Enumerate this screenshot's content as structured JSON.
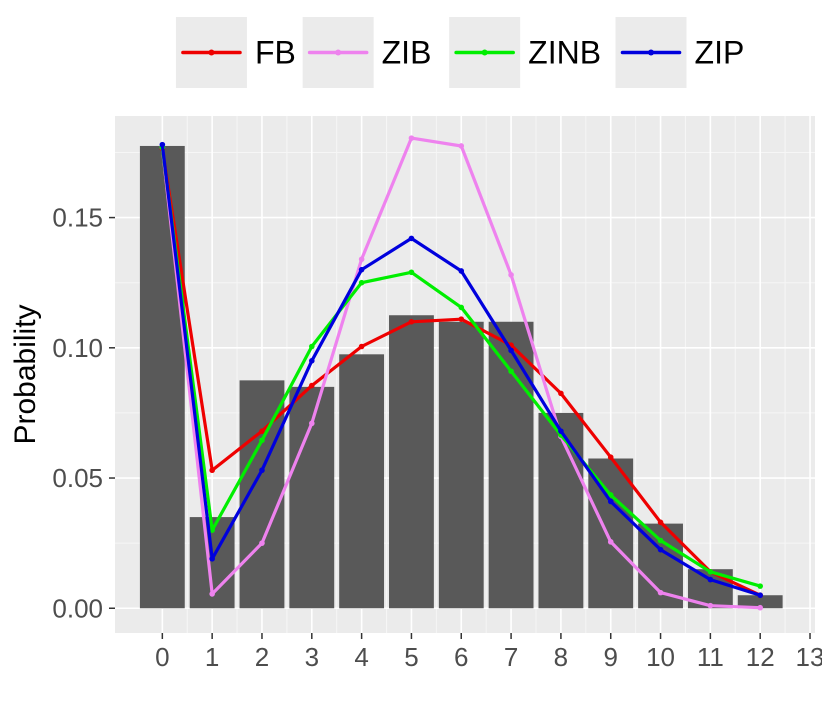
{
  "chart_data": {
    "type": "bar",
    "title": "",
    "xlabel": "",
    "ylabel": "Probability",
    "xlim": [
      -0.95,
      13.1
    ],
    "ylim": [
      -0.0095,
      0.189
    ],
    "x_ticks": [
      "0",
      "1",
      "2",
      "3",
      "4",
      "5",
      "6",
      "7",
      "8",
      "9",
      "10",
      "11",
      "12",
      "13"
    ],
    "y_ticks": [
      "0.00",
      "0.05",
      "0.10",
      "0.15"
    ],
    "y_tick_values": [
      0.0,
      0.05,
      0.1,
      0.15
    ],
    "grid": true,
    "legend_position": "top",
    "bar_color": "#595959",
    "bars": {
      "x": [
        0,
        1,
        2,
        3,
        4,
        5,
        6,
        7,
        8,
        9,
        10,
        11,
        12
      ],
      "values": [
        0.1775,
        0.035,
        0.0875,
        0.085,
        0.0975,
        0.1125,
        0.11,
        0.11,
        0.075,
        0.0575,
        0.0325,
        0.015,
        0.005
      ]
    },
    "series": [
      {
        "name": "FB",
        "color": "#ee0000",
        "x": [
          0,
          1,
          2,
          3,
          4,
          5,
          6,
          7,
          8,
          9,
          10,
          11,
          12
        ],
        "values": [
          0.1765,
          0.053,
          0.068,
          0.0855,
          0.1005,
          0.11,
          0.111,
          0.101,
          0.0825,
          0.058,
          0.033,
          0.014,
          0.005
        ]
      },
      {
        "name": "ZIB",
        "color": "#ee82ee",
        "x": [
          0,
          1,
          2,
          3,
          4,
          5,
          6,
          7,
          8,
          9,
          10,
          11,
          12
        ],
        "values": [
          0.177,
          0.0055,
          0.025,
          0.071,
          0.134,
          0.1805,
          0.1775,
          0.128,
          0.066,
          0.0255,
          0.006,
          0.001,
          0.0002
        ]
      },
      {
        "name": "ZINB",
        "color": "#00ee00",
        "x": [
          0,
          1,
          2,
          3,
          4,
          5,
          6,
          7,
          8,
          9,
          10,
          11,
          12
        ],
        "values": [
          0.177,
          0.03,
          0.0645,
          0.1005,
          0.125,
          0.129,
          0.1155,
          0.091,
          0.0665,
          0.0435,
          0.026,
          0.014,
          0.0085
        ]
      },
      {
        "name": "ZIP",
        "color": "#0000dd",
        "x": [
          0,
          1,
          2,
          3,
          4,
          5,
          6,
          7,
          8,
          9,
          10,
          11,
          12
        ],
        "values": [
          0.178,
          0.019,
          0.053,
          0.095,
          0.13,
          0.142,
          0.1295,
          0.099,
          0.068,
          0.041,
          0.0225,
          0.011,
          0.005
        ]
      }
    ]
  }
}
